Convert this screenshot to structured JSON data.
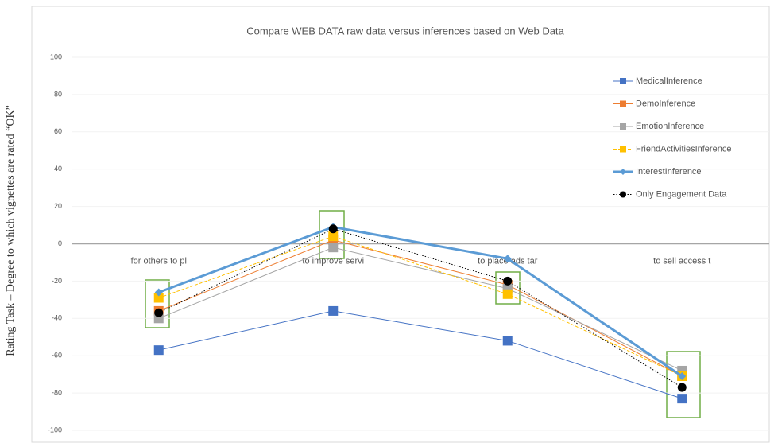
{
  "chart_data": {
    "type": "line",
    "title": "Compare WEB DATA  raw data versus inferences based on Web Data",
    "y_label": "Rating Task – Degree to which vignettes are rated “OK”",
    "categories": [
      "for others to pl",
      "to improve servi",
      "to place ads tar",
      "to sell access t"
    ],
    "ylim": [
      -100,
      100
    ],
    "yticks": [
      -100,
      -80,
      -60,
      -40,
      -20,
      0,
      20,
      40,
      60,
      80,
      100
    ],
    "grid": true,
    "legend": "right",
    "series": [
      {
        "name": "MedicalInference",
        "color": "#4472c4",
        "marker": "square",
        "line": "solid",
        "values": [
          -57,
          -36,
          -52,
          -83
        ]
      },
      {
        "name": "DemoInference",
        "color": "#ed7d31",
        "marker": "square",
        "line": "solid",
        "values": [
          -36,
          2,
          -22,
          -71
        ]
      },
      {
        "name": "EmotionInference",
        "color": "#a5a5a5",
        "marker": "square",
        "line": "solid",
        "values": [
          -40,
          -2,
          -24,
          -68
        ]
      },
      {
        "name": "FriendActivitiesInference",
        "color": "#ffc000",
        "marker": "square",
        "line": "dashed",
        "values": [
          -29,
          4,
          -27,
          -71
        ]
      },
      {
        "name": "InterestInference",
        "color": "#5b9bd5",
        "marker": "diamond",
        "line": "thick",
        "values": [
          -26,
          9,
          -8,
          -71
        ]
      },
      {
        "name": "Only Engagement Data",
        "color": "#000000",
        "marker": "circle",
        "line": "dotted",
        "values": [
          -37,
          8,
          -20,
          -77
        ]
      }
    ]
  }
}
